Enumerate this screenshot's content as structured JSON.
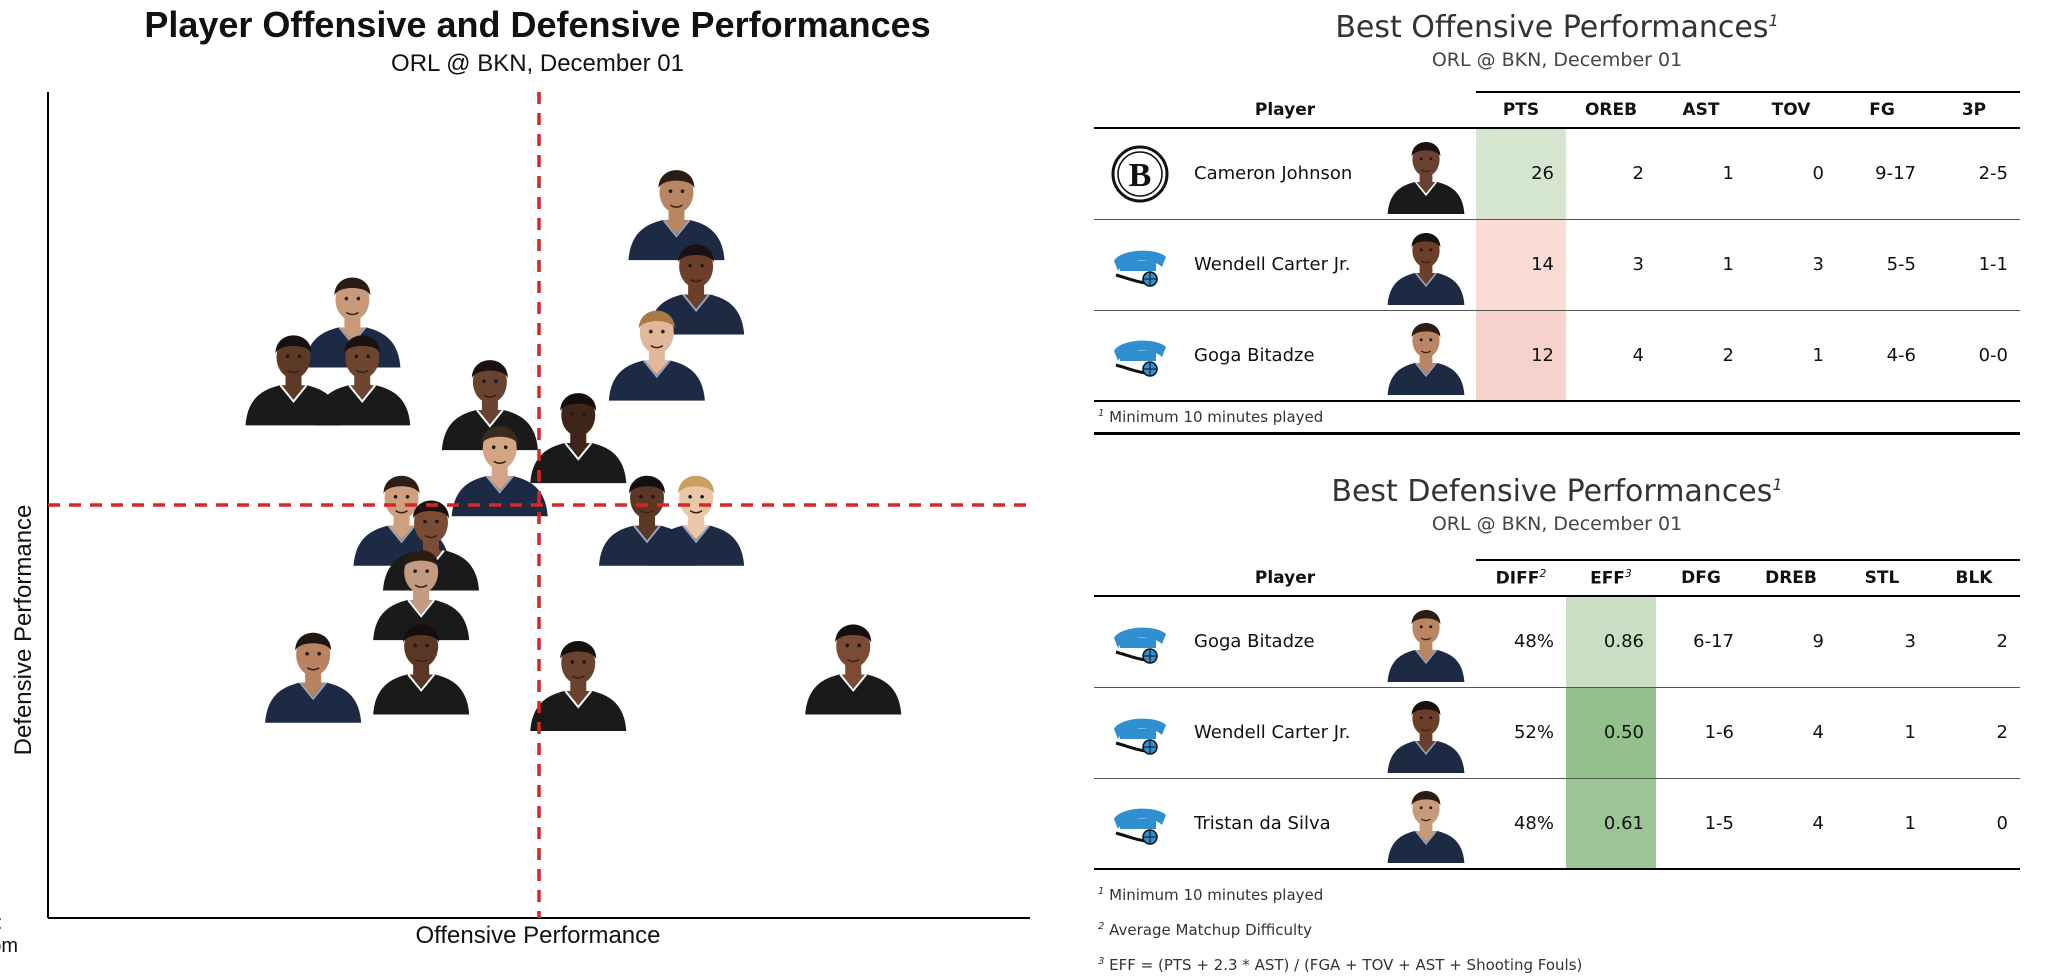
{
  "chart_data": {
    "type": "scatter",
    "title": "Player Offensive and Defensive Performances",
    "subtitle": "ORL @ BKN, December 01",
    "xlabel": "Offensive Performance",
    "ylabel": "Defensive Performance",
    "source": "Data Source: NBA.com",
    "xlim": [
      0,
      1
    ],
    "ylim": [
      0,
      1
    ],
    "reference_lines": {
      "x": 0.5,
      "y": 0.5,
      "style": "dashed",
      "color": "#d62728"
    },
    "markers": "player headshot photos",
    "points": [
      {
        "x": 0.64,
        "y": 0.84,
        "team": "ORL",
        "skin": "#b98563",
        "hair": "#2b1d15"
      },
      {
        "x": 0.66,
        "y": 0.75,
        "team": "ORL",
        "skin": "#6b3f2a",
        "hair": "#1a1210"
      },
      {
        "x": 0.62,
        "y": 0.67,
        "team": "ORL",
        "skin": "#e2b89a",
        "hair": "#a87a45"
      },
      {
        "x": 0.31,
        "y": 0.71,
        "team": "ORL",
        "skin": "#c99a7a",
        "hair": "#2a1c14"
      },
      {
        "x": 0.25,
        "y": 0.64,
        "team": "BKN",
        "skin": "#5c3a26",
        "hair": "#171010"
      },
      {
        "x": 0.32,
        "y": 0.64,
        "team": "BKN",
        "skin": "#6e4630",
        "hair": "#1b1210"
      },
      {
        "x": 0.45,
        "y": 0.61,
        "team": "BKN",
        "skin": "#6a4330",
        "hair": "#1a1210"
      },
      {
        "x": 0.54,
        "y": 0.57,
        "team": "BKN",
        "skin": "#3e2519",
        "hair": "#140d0b"
      },
      {
        "x": 0.46,
        "y": 0.53,
        "team": "ORL",
        "skin": "#d3a584",
        "hair": "#3a2a1d"
      },
      {
        "x": 0.61,
        "y": 0.47,
        "team": "ORL",
        "skin": "#5b3826",
        "hair": "#151010"
      },
      {
        "x": 0.66,
        "y": 0.47,
        "team": "ORL",
        "skin": "#ecc6a8",
        "hair": "#c9a060"
      },
      {
        "x": 0.36,
        "y": 0.47,
        "team": "ORL",
        "skin": "#cf9f80",
        "hair": "#2c1f16"
      },
      {
        "x": 0.39,
        "y": 0.44,
        "team": "BKN",
        "skin": "#7a4c34",
        "hair": "#1b1311"
      },
      {
        "x": 0.38,
        "y": 0.38,
        "team": "BKN",
        "skin": "#c49a80",
        "hair": "#2b1d15"
      },
      {
        "x": 0.27,
        "y": 0.28,
        "team": "ORL",
        "skin": "#b98260",
        "hair": "#1f1611"
      },
      {
        "x": 0.38,
        "y": 0.29,
        "team": "BKN",
        "skin": "#5a3625",
        "hair": "#140e0c"
      },
      {
        "x": 0.54,
        "y": 0.27,
        "team": "BKN",
        "skin": "#6a4230",
        "hair": "#16100d"
      },
      {
        "x": 0.82,
        "y": 0.29,
        "team": "BKN",
        "skin": "#7a4c34",
        "hair": "#15100d"
      }
    ]
  },
  "offense": {
    "title": "Best Offensive Performances",
    "title_note": "1",
    "subtitle": "ORL @ BKN, December 01",
    "headers": {
      "player": "Player",
      "c1": "PTS",
      "c2": "OREB",
      "c3": "AST",
      "c4": "TOV",
      "c5": "FG",
      "c6": "3P"
    },
    "rows": [
      {
        "team": "BKN",
        "name": "Cameron Johnson",
        "c1": "26",
        "c2": "2",
        "c3": "1",
        "c4": "0",
        "c5": "9-17",
        "c6": "2-5",
        "hl": "#d4e6cf",
        "skin": "#6a4330",
        "hair": "#1b1210"
      },
      {
        "team": "ORL",
        "name": "Wendell Carter Jr.",
        "c1": "14",
        "c2": "3",
        "c3": "1",
        "c4": "3",
        "c5": "5-5",
        "c6": "1-1",
        "hl": "#fadbd6",
        "skin": "#6b3f2a",
        "hair": "#1a1210"
      },
      {
        "team": "ORL",
        "name": "Goga Bitadze",
        "c1": "12",
        "c2": "4",
        "c3": "2",
        "c4": "1",
        "c5": "4-6",
        "c6": "0-0",
        "hl": "#f7d2cc",
        "skin": "#b98563",
        "hair": "#2b1d15"
      }
    ],
    "footnotes": [
      {
        "mark": "1",
        "text": "Minimum 10 minutes played"
      }
    ]
  },
  "defense": {
    "title": "Best Defensive Performances",
    "title_note": "1",
    "subtitle": "ORL @ BKN, December 01",
    "headers": {
      "player": "Player",
      "c1": "DIFF",
      "c1_note": "2",
      "c2": "EFF",
      "c2_note": "3",
      "c3": "DFG",
      "c4": "DREB",
      "c5": "STL",
      "c6": "BLK"
    },
    "rows": [
      {
        "team": "ORL",
        "name": "Goga Bitadze",
        "c1": "48%",
        "c2": "0.86",
        "c3": "6-17",
        "c4": "9",
        "c5": "3",
        "c6": "2",
        "hl": "#c9dfc3",
        "skin": "#b98563",
        "hair": "#2b1d15"
      },
      {
        "team": "ORL",
        "name": "Wendell Carter Jr.",
        "c1": "52%",
        "c2": "0.50",
        "c3": "1-6",
        "c4": "4",
        "c5": "1",
        "c6": "2",
        "hl": "#93c08c",
        "skin": "#6b3f2a",
        "hair": "#1a1210"
      },
      {
        "team": "ORL",
        "name": "Tristan da Silva",
        "c1": "48%",
        "c2": "0.61",
        "c3": "1-5",
        "c4": "4",
        "c5": "1",
        "c6": "0",
        "hl": "#9bc594",
        "skin": "#c99a7a",
        "hair": "#2a1c14"
      }
    ],
    "footnotes": [
      {
        "mark": "1",
        "text": "Minimum 10 minutes played"
      },
      {
        "mark": "2",
        "text": "Average Matchup Difficulty"
      },
      {
        "mark": "3",
        "text": "EFF = (PTS + 2.3 * AST) / (FGA + TOV + AST + Shooting Fouls)"
      }
    ]
  },
  "colors": {
    "orl_jersey": "#1d2a44",
    "bkn_jersey": "#1a1a1a",
    "orl_logo": "#2f8fd0",
    "refline": "#d62728"
  }
}
